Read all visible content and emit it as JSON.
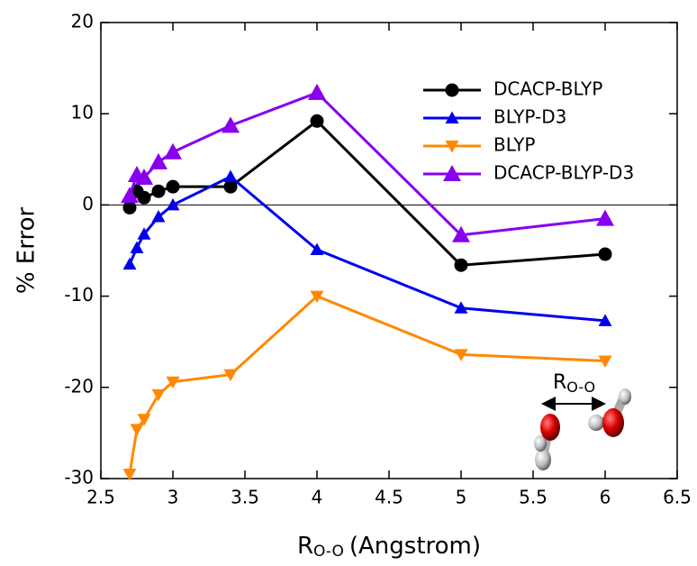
{
  "chart_data": {
    "type": "line",
    "y_label": "% Error",
    "x_label": {
      "symbol": "R",
      "subscript": "O-O",
      "text": "(Angstrom)"
    },
    "annotation": {
      "symbol": "R",
      "subscript": "O-O"
    },
    "x": [
      2.7,
      2.75,
      2.8,
      2.9,
      3.0,
      3.4,
      4.0,
      5.0,
      6.0
    ],
    "series": [
      {
        "name": "DCACP-BLYP",
        "color": "#000000",
        "marker": "circle",
        "values": [
          -0.3,
          1.5,
          0.8,
          1.5,
          2.0,
          2.0,
          9.2,
          -6.6,
          -5.4
        ]
      },
      {
        "name": "BLYP-D3",
        "color": "#0000ee",
        "marker": "triangle-up",
        "values": [
          -6.5,
          -4.7,
          -3.2,
          -1.3,
          0.0,
          3.1,
          -4.9,
          -11.3,
          -12.7
        ]
      },
      {
        "name": "BLYP",
        "color": "#ff8800",
        "marker": "triangle-down",
        "values": [
          -29.5,
          -24.6,
          -23.5,
          -20.8,
          -19.4,
          -18.6,
          -10.0,
          -16.4,
          -17.1
        ]
      },
      {
        "name": "DCACP-BLYP-D3",
        "color": "#8800ee",
        "marker": "triangle-up-large",
        "values": [
          1.0,
          3.3,
          3.0,
          4.7,
          5.8,
          8.7,
          12.3,
          -3.3,
          -1.5
        ]
      }
    ],
    "xlim": [
      2.5,
      6.5
    ],
    "xticks": [
      2.5,
      3,
      3.5,
      4,
      4.5,
      5,
      5.5,
      6,
      6.5
    ],
    "ylim": [
      -30,
      20
    ],
    "yticks": [
      -30,
      -20,
      -10,
      0,
      10,
      20
    ],
    "hline": 0,
    "legend": "upper right"
  }
}
